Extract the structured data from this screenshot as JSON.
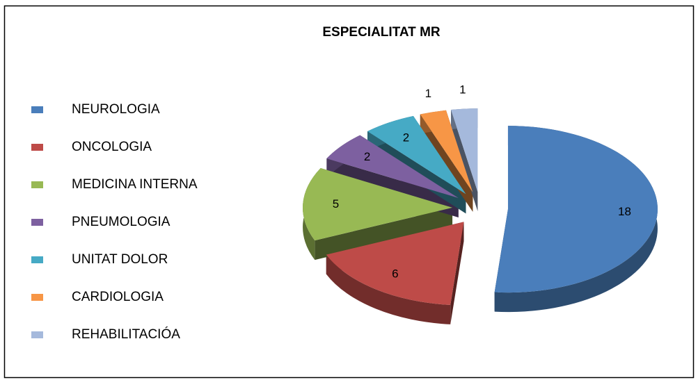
{
  "chart_data": {
    "type": "pie",
    "title": "ESPECIALITAT MR",
    "categories": [
      "NEUROLOGIA",
      "ONCOLOGIA",
      "MEDICINA INTERNA",
      "PNEUMOLOGIA",
      "UNITAT DOLOR",
      "CARDIOLOGIA",
      "REHABILITACIÓA"
    ],
    "values": [
      18,
      6,
      5,
      2,
      2,
      1,
      1
    ],
    "colors": [
      "#4a7ebb",
      "#be4b48",
      "#98b954",
      "#7d60a0",
      "#46aac5",
      "#f79646",
      "#a5b9dc"
    ],
    "legend": "left"
  }
}
